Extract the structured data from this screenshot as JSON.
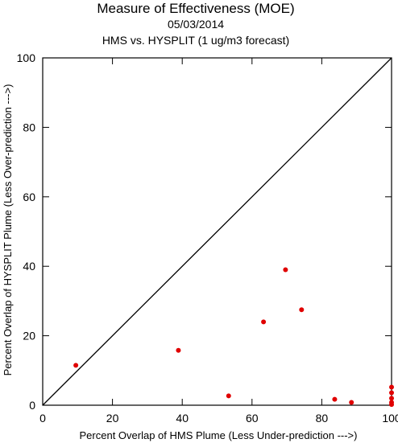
{
  "chart_data": {
    "type": "scatter",
    "title": "Measure of Effectiveness (MOE)",
    "subtitle_date": "05/03/2014",
    "subtitle": "HMS vs. HYSPLIT  (1 ug/m3 forecast)",
    "xlabel": "Percent Overlap of HMS Plume (Less Under-prediction --->)",
    "ylabel": "Percent Overlap of HYSPLIT Plume (Less Over-prediction --->)",
    "xlim": [
      0,
      100
    ],
    "ylim": [
      0,
      100
    ],
    "x_ticks": [
      "0",
      "20",
      "40",
      "60",
      "80",
      "100"
    ],
    "y_ticks": [
      "0",
      "20",
      "40",
      "60",
      "80",
      "100"
    ],
    "reference_line": "diagonal y = x",
    "grid": false,
    "point_color": "#e00000",
    "points": [
      {
        "x": 9.5,
        "y": 11.5
      },
      {
        "x": 38.9,
        "y": 15.8
      },
      {
        "x": 53.3,
        "y": 2.7
      },
      {
        "x": 63.3,
        "y": 24.0
      },
      {
        "x": 69.6,
        "y": 39.0
      },
      {
        "x": 74.2,
        "y": 27.5
      },
      {
        "x": 83.7,
        "y": 1.7
      },
      {
        "x": 88.5,
        "y": 0.8
      },
      {
        "x": 100,
        "y": 5.2
      },
      {
        "x": 100,
        "y": 3.6
      },
      {
        "x": 100,
        "y": 2.0
      },
      {
        "x": 100,
        "y": 0.8
      },
      {
        "x": 100,
        "y": 0.2
      }
    ]
  }
}
